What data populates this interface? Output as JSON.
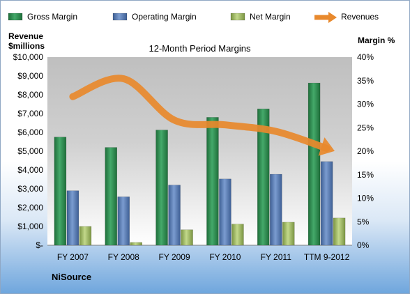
{
  "chart_data": {
    "type": "bar",
    "title": "12-Month Period Margins",
    "company": "NiSource",
    "y_left_label_line1": "Revenue",
    "y_left_label_line2": "$millions",
    "y_right_label": "Margin %",
    "categories": [
      "FY 2007",
      "FY 2008",
      "FY 2009",
      "FY 2010",
      "FY 2011",
      "TTM 9-2012"
    ],
    "ylim_left": [
      0,
      10000
    ],
    "ylim_right": [
      0,
      40
    ],
    "y_left_ticks": [
      {
        "value": 0,
        "label": "$-"
      },
      {
        "value": 1000,
        "label": "$1,000"
      },
      {
        "value": 2000,
        "label": "$2,000"
      },
      {
        "value": 3000,
        "label": "$3,000"
      },
      {
        "value": 4000,
        "label": "$4,000"
      },
      {
        "value": 5000,
        "label": "$5,000"
      },
      {
        "value": 6000,
        "label": "$6,000"
      },
      {
        "value": 7000,
        "label": "$7,000"
      },
      {
        "value": 8000,
        "label": "$8,000"
      },
      {
        "value": 9000,
        "label": "$9,000"
      },
      {
        "value": 10000,
        "label": "$10,000"
      }
    ],
    "y_right_ticks": [
      {
        "value": 0,
        "label": "0%"
      },
      {
        "value": 5,
        "label": "5%"
      },
      {
        "value": 10,
        "label": "10%"
      },
      {
        "value": 15,
        "label": "15%"
      },
      {
        "value": 20,
        "label": "20%"
      },
      {
        "value": 25,
        "label": "25%"
      },
      {
        "value": 30,
        "label": "30%"
      },
      {
        "value": 35,
        "label": "35%"
      },
      {
        "value": 40,
        "label": "40%"
      }
    ],
    "series": [
      {
        "name": "Gross Margin",
        "axis": "right",
        "values": [
          23.0,
          20.8,
          24.5,
          27.2,
          29.0,
          34.5
        ],
        "color": "#2e8a4f"
      },
      {
        "name": "Operating Margin",
        "axis": "right",
        "values": [
          11.6,
          10.3,
          12.8,
          14.1,
          15.1,
          17.8
        ],
        "color": "#5a7fb8"
      },
      {
        "name": "Net Margin",
        "axis": "right",
        "values": [
          4.0,
          0.6,
          3.3,
          4.5,
          4.9,
          5.8
        ],
        "color": "#9bbb59"
      },
      {
        "name": "Revenues",
        "axis": "left",
        "type": "line",
        "values": [
          7900,
          8850,
          6650,
          6400,
          6050,
          5150
        ],
        "color": "#e8892d"
      }
    ],
    "legend_position": "top",
    "grid": false
  }
}
